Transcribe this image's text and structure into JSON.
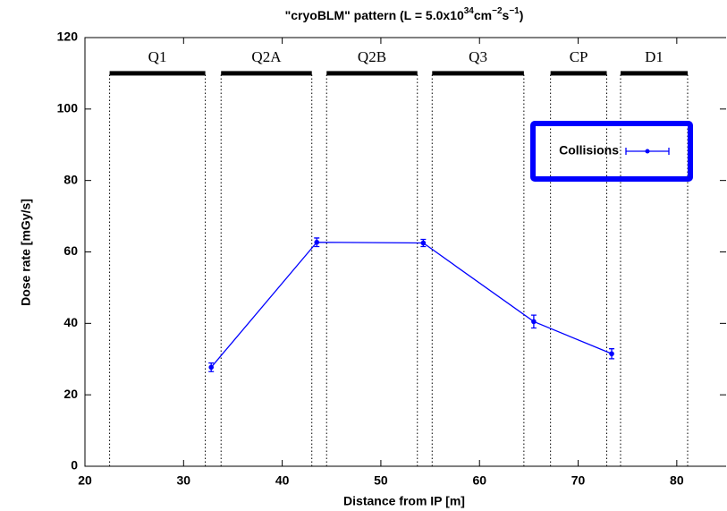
{
  "chart_data": {
    "type": "line",
    "title_parts": [
      "\"cryoBLM\" pattern (L = 5.0x10",
      "34",
      "cm",
      "−2",
      "s",
      "−1",
      ")"
    ],
    "x_label": "Distance from IP [m]",
    "y_label": "Dose rate [mGy/s]",
    "xlim": [
      20,
      85
    ],
    "xticks": [
      20,
      30,
      40,
      50,
      60,
      70,
      80
    ],
    "ylim": [
      0,
      120
    ],
    "yticks": [
      0,
      20,
      40,
      60,
      80,
      100,
      120
    ],
    "legend_position": "upper right",
    "series": [
      {
        "name": "Collisions",
        "color": "#0000ff",
        "x": [
          32.8,
          43.5,
          54.3,
          65.5,
          73.4
        ],
        "values": [
          27.7,
          62.7,
          62.5,
          40.5,
          31.5
        ],
        "errors": [
          1.2,
          1.2,
          1.0,
          1.8,
          1.4
        ]
      }
    ],
    "regions": [
      {
        "label": "Q1",
        "start": 22.5,
        "end": 32.2,
        "level": 110
      },
      {
        "label": "Q2A",
        "start": 33.8,
        "end": 43.0,
        "level": 110
      },
      {
        "label": "Q2B",
        "start": 44.5,
        "end": 53.7,
        "level": 110
      },
      {
        "label": "Q3",
        "start": 55.2,
        "end": 64.5,
        "level": 110
      },
      {
        "label": "CP",
        "start": 67.2,
        "end": 72.9,
        "level": 110
      },
      {
        "label": "D1",
        "start": 74.3,
        "end": 81.1,
        "level": 110
      }
    ]
  }
}
